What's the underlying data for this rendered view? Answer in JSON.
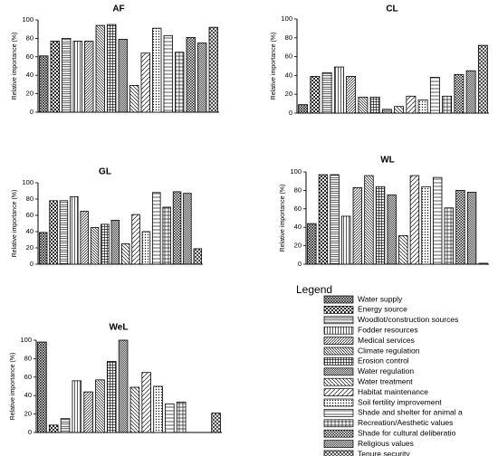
{
  "chart_data": [
    {
      "type": "bar",
      "title": "AF",
      "ylabel": "Relative importance (%)",
      "values": [
        61,
        77,
        80,
        77,
        77,
        94,
        95,
        79,
        29,
        64,
        91,
        83,
        65,
        81,
        75,
        92
      ],
      "ylim": [
        0,
        100
      ],
      "yticks": [
        0,
        20,
        40,
        60,
        80,
        100
      ]
    },
    {
      "type": "bar",
      "title": "CL",
      "ylabel": "Relative importance (%)",
      "values": [
        9,
        39,
        43,
        49,
        39,
        17,
        17,
        4,
        7,
        18,
        14,
        38,
        18,
        41,
        45,
        72
      ],
      "ylim": [
        0,
        100
      ],
      "yticks": [
        0,
        20,
        40,
        60,
        80,
        100
      ]
    },
    {
      "type": "bar",
      "title": "GL",
      "ylabel": "Relative importance (%)",
      "values": [
        39,
        78,
        78,
        83,
        65,
        45,
        49,
        54,
        25,
        61,
        40,
        88,
        70,
        89,
        87,
        19
      ],
      "ylim": [
        0,
        100
      ],
      "yticks": [
        0,
        20,
        40,
        60,
        80,
        100
      ]
    },
    {
      "type": "bar",
      "title": "WL",
      "ylabel": "Relative importance (%)",
      "values": [
        44,
        97,
        97,
        52,
        83,
        96,
        84,
        75,
        31,
        96,
        84,
        94,
        61,
        80,
        78,
        1
      ],
      "ylim": [
        0,
        100
      ],
      "yticks": [
        0,
        20,
        40,
        60,
        80,
        100
      ]
    },
    {
      "type": "bar",
      "title": "WeL",
      "ylabel": "Relative importance (%)",
      "values": [
        98,
        8,
        15,
        56,
        44,
        57,
        77,
        100,
        49,
        65,
        50,
        31,
        33,
        0,
        0,
        21
      ],
      "ylim": [
        0,
        100
      ],
      "yticks": [
        0,
        20,
        40,
        60,
        80,
        100
      ]
    }
  ],
  "legend": {
    "title": "Legend",
    "items": [
      "Water supply",
      "Energy source",
      "Woodlot/construction sources",
      "Fodder resources",
      "Medical services",
      "Climate regulation",
      "Erosion control",
      "Water regulation",
      "Water treatment",
      "Habitat maintenance",
      "Soil fertility improvement",
      "Shade and shelter for animal a",
      "Recreation/Aesthetic values",
      "Shade for cultural deliberatio",
      "Religious values",
      "Tenure security"
    ]
  }
}
